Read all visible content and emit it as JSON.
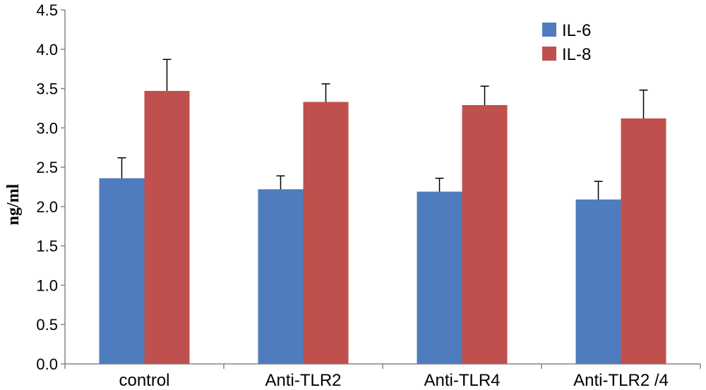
{
  "chart_data": {
    "type": "bar",
    "title": "",
    "xlabel": "",
    "ylabel": "ng/ml",
    "ylim": [
      0,
      4.5
    ],
    "y_ticks": [
      "0.0",
      "0.5",
      "1.0",
      "1.5",
      "2.0",
      "2.5",
      "3.0",
      "3.5",
      "4.0",
      "4.5"
    ],
    "grid": false,
    "legend_position": "top-right",
    "categories": [
      "control",
      "Anti-TLR2",
      "Anti-TLR4",
      "Anti-TLR2 /4"
    ],
    "series": [
      {
        "name": "IL-6",
        "color": "#4f7cbe",
        "values": [
          2.36,
          2.22,
          2.19,
          2.09
        ],
        "errors": [
          0.26,
          0.17,
          0.17,
          0.23
        ]
      },
      {
        "name": "IL-8",
        "color": "#c0504d",
        "values": [
          3.47,
          3.33,
          3.29,
          3.12
        ],
        "errors": [
          0.4,
          0.23,
          0.24,
          0.36
        ]
      }
    ]
  }
}
